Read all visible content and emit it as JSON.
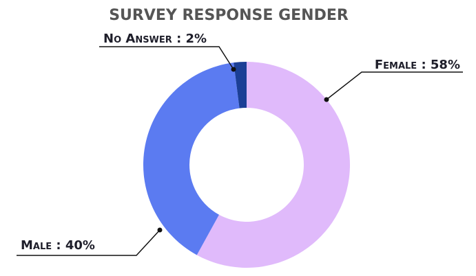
{
  "chart_data": {
    "type": "donut",
    "title": "SURVEY RESPONSE GENDER",
    "categories": [
      "Female",
      "Male",
      "No Answer"
    ],
    "values": [
      58,
      40,
      2
    ],
    "value_labels": [
      "58%",
      "40%",
      "2%"
    ],
    "separator": " : ",
    "colors": [
      "#e0bafb",
      "#5b7bf1",
      "#1b3f96"
    ]
  }
}
